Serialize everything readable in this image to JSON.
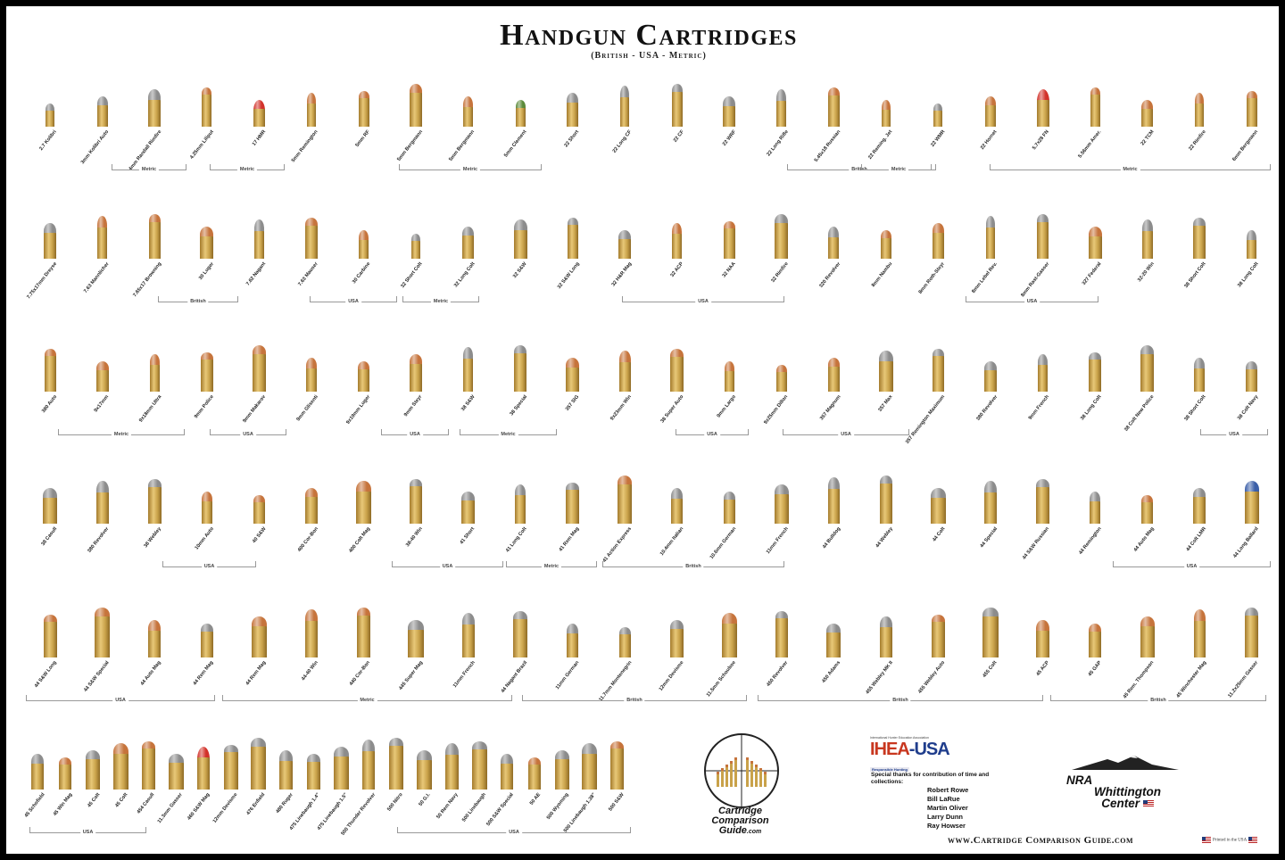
{
  "title": "Handgun Cartridges",
  "subtitle": "(British - USA - Metric)",
  "rows": [
    {
      "cartridges": [
        {
          "name": "2.7 Kolibri",
          "sub": "(Metric)",
          "tip": "lead"
        },
        {
          "name": "3mm Kolibri Auto",
          "sub": "",
          "tip": "lead"
        },
        {
          "name": "4mm Randall Rimfire",
          "sub": "",
          "tip": "lead"
        },
        {
          "name": "4.25mm Liliput",
          "sub": "(Metric)",
          "tip": "copper"
        },
        {
          "name": "17 HMR",
          "sub": "",
          "tip": "polymer"
        },
        {
          "name": "5mm Remington",
          "sub": "",
          "tip": "copper"
        },
        {
          "name": "5mm RF",
          "sub": "",
          "tip": "copper"
        },
        {
          "name": "5mm Bergmann",
          "sub": "(Metric)",
          "tip": "copper"
        },
        {
          "name": "5mm Bergmann",
          "sub": "(Metric)",
          "tip": "copper"
        },
        {
          "name": "5mm Clement",
          "sub": "(Metric)",
          "tip": "green"
        },
        {
          "name": "22 Short",
          "sub": "",
          "tip": "lead"
        },
        {
          "name": "22 Long CF",
          "sub": "",
          "tip": "lead"
        },
        {
          "name": "22 CF",
          "sub": "",
          "tip": "lead"
        },
        {
          "name": "22 WRF",
          "sub": "",
          "tip": "lead"
        },
        {
          "name": "22 Long Rifle",
          "sub": "",
          "tip": "lead"
        },
        {
          "name": "5.45x18 Russian",
          "sub": "",
          "tip": "copper"
        },
        {
          "name": "22 Reming. Jet",
          "sub": "",
          "tip": "copper"
        },
        {
          "name": "22 WMR",
          "sub": "",
          "tip": "lead"
        },
        {
          "name": "22 Hornet",
          "sub": "",
          "tip": "copper"
        },
        {
          "name": "5.7x28 FN",
          "sub": "",
          "tip": "polymer"
        },
        {
          "name": "5.56mm Amer.",
          "sub": "",
          "tip": "copper"
        },
        {
          "name": "22 TCM",
          "sub": "",
          "tip": "copper"
        },
        {
          "name": "22 Rimfire",
          "sub": "",
          "tip": "copper"
        },
        {
          "name": "6mm Bergmann",
          "sub": "(Metric)",
          "tip": "copper"
        }
      ],
      "groups": [
        {
          "label": "Metric"
        },
        {
          "label": "Metric"
        },
        {
          "label": "Metric"
        },
        {
          "label": "British"
        },
        {
          "label": "Metric"
        },
        {
          "label": "Metric"
        }
      ]
    },
    {
      "cartridges": [
        {
          "name": "7.75x17mm Dreyse",
          "sub": "",
          "tip": "lead"
        },
        {
          "name": "7.63 Mannlicher",
          "sub": "",
          "tip": "copper"
        },
        {
          "name": "7.65x17 Browning",
          "sub": "",
          "tip": "copper"
        },
        {
          "name": "30 Luger",
          "sub": "",
          "tip": "copper"
        },
        {
          "name": "7.62 Nagant",
          "sub": "",
          "tip": "lead"
        },
        {
          "name": "7.63 Mauser",
          "sub": "",
          "tip": "copper"
        },
        {
          "name": "30 Carbine",
          "sub": "",
          "tip": "copper"
        },
        {
          "name": "32 Short Colt",
          "sub": "",
          "tip": "lead"
        },
        {
          "name": "32 Long Colt",
          "sub": "",
          "tip": "lead"
        },
        {
          "name": "32 S&W",
          "sub": "",
          "tip": "lead"
        },
        {
          "name": "32 S&W Long",
          "sub": "",
          "tip": "lead"
        },
        {
          "name": "32 H&R Mag",
          "sub": "",
          "tip": "lead"
        },
        {
          "name": "32 ACP",
          "sub": "",
          "tip": "copper"
        },
        {
          "name": "32 NAA",
          "sub": "",
          "tip": "copper"
        },
        {
          "name": "32 Rimfire",
          "sub": "",
          "tip": "lead"
        },
        {
          "name": "320 Revolver",
          "sub": "",
          "tip": "lead"
        },
        {
          "name": "8mm Nambu",
          "sub": "",
          "tip": "copper"
        },
        {
          "name": "8mm Roth-Steyr",
          "sub": "",
          "tip": "copper"
        },
        {
          "name": "8mm Lebel Rev.",
          "sub": "",
          "tip": "lead"
        },
        {
          "name": "8mm Rast-Gasser",
          "sub": "",
          "tip": "lead"
        },
        {
          "name": "327 Federal",
          "sub": "",
          "tip": "copper"
        },
        {
          "name": "32-20 Win",
          "sub": "",
          "tip": "lead"
        },
        {
          "name": "38 Short Colt",
          "sub": "",
          "tip": "lead"
        },
        {
          "name": "38 Long Colt",
          "sub": "",
          "tip": "lead"
        }
      ],
      "groups": [
        {
          "label": "British"
        },
        {
          "label": "USA"
        },
        {
          "label": "Metric"
        },
        {
          "label": "USA"
        },
        {
          "label": "USA"
        }
      ]
    },
    {
      "cartridges": [
        {
          "name": "380 Auto",
          "sub": "",
          "tip": "copper"
        },
        {
          "name": "9x17mm",
          "sub": "",
          "tip": "copper"
        },
        {
          "name": "9x18mm Ultra",
          "sub": "",
          "tip": "copper"
        },
        {
          "name": "9mm Police",
          "sub": "",
          "tip": "copper"
        },
        {
          "name": "9mm Makarov",
          "sub": "",
          "tip": "copper"
        },
        {
          "name": "9mm Glisenti",
          "sub": "",
          "tip": "copper"
        },
        {
          "name": "9x19mm Luger",
          "sub": "",
          "tip": "copper"
        },
        {
          "name": "9mm Steyr",
          "sub": "",
          "tip": "copper"
        },
        {
          "name": "38 S&W",
          "sub": "",
          "tip": "lead"
        },
        {
          "name": "38 Special",
          "sub": "",
          "tip": "lead"
        },
        {
          "name": "357 SIG",
          "sub": "",
          "tip": "copper"
        },
        {
          "name": "9x23mm Win",
          "sub": "",
          "tip": "copper"
        },
        {
          "name": "38 Super Auto",
          "sub": "",
          "tip": "copper"
        },
        {
          "name": "9mm Largo",
          "sub": "",
          "tip": "copper"
        },
        {
          "name": "9x25mm Dillon",
          "sub": "",
          "tip": "copper"
        },
        {
          "name": "357 Magnum",
          "sub": "",
          "tip": "copper"
        },
        {
          "name": "357 Max",
          "sub": "",
          "tip": "lead"
        },
        {
          "name": "357 Remington Maximum",
          "sub": "",
          "tip": "lead"
        },
        {
          "name": "380 Revolver",
          "sub": "",
          "tip": "lead"
        },
        {
          "name": "9mm French",
          "sub": "",
          "tip": "lead"
        },
        {
          "name": "38 Long Colt",
          "sub": "",
          "tip": "lead"
        },
        {
          "name": "38 Colt New Police",
          "sub": "",
          "tip": "lead"
        },
        {
          "name": "38 Short Colt",
          "sub": "",
          "tip": "lead"
        },
        {
          "name": "38 Colt Navy",
          "sub": "",
          "tip": "lead"
        }
      ],
      "groups": [
        {
          "label": "Metric"
        },
        {
          "label": "USA"
        },
        {
          "label": "USA"
        },
        {
          "label": "Metric"
        },
        {
          "label": "USA"
        },
        {
          "label": "USA"
        },
        {
          "label": "USA"
        }
      ]
    },
    {
      "cartridges": [
        {
          "name": "38 Casull",
          "sub": "",
          "tip": "lead"
        },
        {
          "name": "380 Revolver",
          "sub": "",
          "tip": "lead"
        },
        {
          "name": "38 Webley",
          "sub": "",
          "tip": "lead"
        },
        {
          "name": "10mm Auto",
          "sub": "",
          "tip": "copper"
        },
        {
          "name": "40 S&W",
          "sub": "",
          "tip": "copper"
        },
        {
          "name": "400 Cor-Bon",
          "sub": "",
          "tip": "copper"
        },
        {
          "name": "400 Colt Mag",
          "sub": "",
          "tip": "copper"
        },
        {
          "name": "38-40 Win",
          "sub": "",
          "tip": "lead"
        },
        {
          "name": "41 Short",
          "sub": "",
          "tip": "lead"
        },
        {
          "name": "41 Long Colt",
          "sub": "",
          "tip": "lead"
        },
        {
          "name": "41 Rem Mag",
          "sub": "",
          "tip": "lead"
        },
        {
          "name": "41 Action Express",
          "sub": "",
          "tip": "copper"
        },
        {
          "name": "10.4mm Italian",
          "sub": "",
          "tip": "lead"
        },
        {
          "name": "10.6mm German",
          "sub": "",
          "tip": "lead"
        },
        {
          "name": "11mm French",
          "sub": "",
          "tip": "lead"
        },
        {
          "name": "44 Bulldog",
          "sub": "",
          "tip": "lead"
        },
        {
          "name": "44 Webley",
          "sub": "",
          "tip": "lead"
        },
        {
          "name": "44 Colt",
          "sub": "",
          "tip": "lead"
        },
        {
          "name": "44 Special",
          "sub": "",
          "tip": "lead"
        },
        {
          "name": "44 S&W Russian",
          "sub": "",
          "tip": "lead"
        },
        {
          "name": "44 Remington",
          "sub": "",
          "tip": "lead"
        },
        {
          "name": "44 Auto Mag",
          "sub": "",
          "tip": "copper"
        },
        {
          "name": "44 Colt LMR",
          "sub": "",
          "tip": "lead"
        },
        {
          "name": "44 Long Ballard",
          "sub": "",
          "tip": "blue"
        }
      ],
      "groups": [
        {
          "label": "USA"
        },
        {
          "label": "USA"
        },
        {
          "label": "Metric"
        },
        {
          "label": "British"
        },
        {
          "label": "USA"
        }
      ]
    },
    {
      "cartridges": [
        {
          "name": "44 S&W Long",
          "sub": "",
          "tip": "copper"
        },
        {
          "name": "44 S&W Special",
          "sub": "",
          "tip": "copper"
        },
        {
          "name": "44 Auto Mag",
          "sub": "",
          "tip": "copper"
        },
        {
          "name": "44 Rem Mag",
          "sub": "",
          "tip": "lead"
        },
        {
          "name": "44 Rem Mag",
          "sub": "",
          "tip": "copper"
        },
        {
          "name": "44-40 Win",
          "sub": "",
          "tip": "copper"
        },
        {
          "name": "440 Cor-Bon",
          "sub": "",
          "tip": "copper"
        },
        {
          "name": "445 Super Mag",
          "sub": "",
          "tip": "lead"
        },
        {
          "name": "11mm French",
          "sub": "",
          "tip": "lead"
        },
        {
          "name": "44 Nagant Brazil",
          "sub": "",
          "tip": "lead"
        },
        {
          "name": "11mm German",
          "sub": "",
          "tip": "lead"
        },
        {
          "name": "11.7mm Montenegrin",
          "sub": "",
          "tip": "lead"
        },
        {
          "name": "12mm Devisme",
          "sub": "",
          "tip": "lead"
        },
        {
          "name": "11.5mm Schouboe",
          "sub": "",
          "tip": "copper"
        },
        {
          "name": "450 Revolver",
          "sub": "",
          "tip": "lead"
        },
        {
          "name": "450 Adams",
          "sub": "",
          "tip": "lead"
        },
        {
          "name": "455 Webley MK II",
          "sub": "",
          "tip": "lead"
        },
        {
          "name": "455 Webley Auto",
          "sub": "",
          "tip": "copper"
        },
        {
          "name": "455 Colt",
          "sub": "",
          "tip": "lead"
        },
        {
          "name": "45 ACP",
          "sub": "",
          "tip": "copper"
        },
        {
          "name": "45 GAP",
          "sub": "",
          "tip": "copper"
        },
        {
          "name": "45 Rem. Thompson",
          "sub": "",
          "tip": "copper"
        },
        {
          "name": "45 Winchester Mag",
          "sub": "",
          "tip": "copper"
        },
        {
          "name": "11.2x25mm Gasser",
          "sub": "",
          "tip": "lead"
        }
      ],
      "groups": [
        {
          "label": "USA"
        },
        {
          "label": "Metric"
        },
        {
          "label": "British"
        },
        {
          "label": "British"
        },
        {
          "label": "British"
        }
      ]
    },
    {
      "cartridges": [
        {
          "name": "45 Schofield",
          "sub": "",
          "tip": "lead"
        },
        {
          "name": "45 Win Mag",
          "sub": "",
          "tip": "copper"
        },
        {
          "name": "45 Colt",
          "sub": "",
          "tip": "lead"
        },
        {
          "name": "45 Colt",
          "sub": "",
          "tip": "copper"
        },
        {
          "name": "454 Casull",
          "sub": "",
          "tip": "copper"
        },
        {
          "name": "11.3mm Gasser",
          "sub": "",
          "tip": "lead"
        },
        {
          "name": "460 S&W Mag",
          "sub": "",
          "tip": "polymer"
        },
        {
          "name": "12mm Devisme",
          "sub": "",
          "tip": "lead"
        },
        {
          "name": "476 Enfield",
          "sub": "",
          "tip": "lead"
        },
        {
          "name": "480 Ruger",
          "sub": "",
          "tip": "lead"
        },
        {
          "name": "475 Linebaugh 1.4\"",
          "sub": "",
          "tip": "lead"
        },
        {
          "name": "475 Linebaugh 1.5\"",
          "sub": "",
          "tip": "lead"
        },
        {
          "name": "500 Thunder Revolver",
          "sub": "",
          "tip": "lead"
        },
        {
          "name": "500 Nitro",
          "sub": "",
          "tip": "lead"
        },
        {
          "name": "50 G.I.",
          "sub": "",
          "tip": "lead"
        },
        {
          "name": "50 Rem Navy",
          "sub": "",
          "tip": "lead"
        },
        {
          "name": "500 Linebaugh",
          "sub": "",
          "tip": "lead"
        },
        {
          "name": "500 S&W Special",
          "sub": "",
          "tip": "lead"
        },
        {
          "name": "50 AE",
          "sub": "",
          "tip": "copper"
        },
        {
          "name": "500 Wyoming",
          "sub": "",
          "tip": "lead"
        },
        {
          "name": "500 Linebaugh 1.38\"",
          "sub": "",
          "tip": "lead"
        },
        {
          "name": "500 S&W",
          "sub": "",
          "tip": "copper"
        }
      ],
      "groups": [
        {
          "label": "USA"
        },
        {
          "label": "USA"
        }
      ]
    }
  ],
  "logos": {
    "ccg_line1": "Cartridge",
    "ccg_line2": "Comparison",
    "ccg_line3": "Guide",
    "ccg_line4": ".com",
    "ihea_top": "International Hunter Education Association",
    "ihea_name_a": "IHEA",
    "ihea_name_b": "-USA",
    "ihea_sub": "Responsible Hunting",
    "nra_line1": "NRA",
    "nra_line2": "Whittington",
    "nra_line3": "Center"
  },
  "thanks": {
    "intro": "Special thanks for contribution of time and collections:",
    "names": [
      "Robert Rowe",
      "Bill LaRue",
      "Martin Oliver",
      "Larry Dunn",
      "Ray Howser"
    ]
  },
  "footer": {
    "website": "www.Cartridge Comparison Guide.com",
    "printed": "Printed in the USA"
  },
  "colors": {
    "brass": "#c9a24a",
    "copper": "#c6743c",
    "lead": "#8c8c8c",
    "polymer": "#d2322a",
    "background": "#ffffff",
    "frame": "#000000"
  }
}
